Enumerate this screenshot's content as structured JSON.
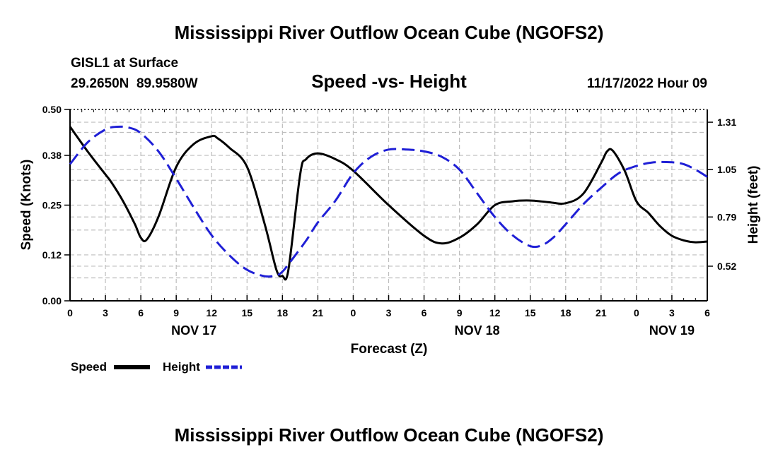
{
  "header": {
    "title": "Mississippi River Outflow Ocean Cube (NGOFS2)",
    "station": "GISL1 at Surface",
    "coords": "29.2650N  89.9580W",
    "chart_title": "Speed -vs- Height",
    "datetime": "11/17/2022 Hour 09",
    "footer_title": "Mississippi River Outflow Ocean Cube (NGOFS2)"
  },
  "legend": {
    "speed_label": "Speed",
    "height_label": "Height"
  },
  "colors": {
    "speed": "#000000",
    "height": "#1f1fd6",
    "grid": "#bdbdbd"
  },
  "chart_data": {
    "type": "line",
    "title": "Speed -vs- Height",
    "xlabel": "Forecast (Z)",
    "ylabel": "Speed (Knots)",
    "y2label": "Height (feet)",
    "xlim": [
      0,
      54
    ],
    "ylim": [
      0,
      0.5
    ],
    "y2lim": [
      0.33,
      1.38
    ],
    "x_ticks": [
      0,
      3,
      6,
      9,
      12,
      15,
      18,
      21,
      24,
      27,
      30,
      33,
      36,
      39,
      42,
      45,
      48,
      51,
      54
    ],
    "x_tick_labels": [
      "0",
      "3",
      "6",
      "9",
      "12",
      "15",
      "18",
      "21",
      "0",
      "3",
      "6",
      "9",
      "12",
      "15",
      "18",
      "21",
      "0",
      "3",
      "6"
    ],
    "y_ticks": [
      0.0,
      0.12,
      0.25,
      0.38,
      0.5
    ],
    "y_tick_labels": [
      "0.00",
      "0.12",
      "0.25",
      "0.38",
      "0.50"
    ],
    "y2_ticks": [
      0.52,
      0.79,
      1.05,
      1.31
    ],
    "y2_tick_labels": [
      "0.52",
      "0.79",
      "1.05",
      "1.31"
    ],
    "date_labels": [
      {
        "x": 10.5,
        "label": "NOV 17"
      },
      {
        "x": 34.5,
        "label": "NOV 18"
      },
      {
        "x": 51,
        "label": "NOV 19"
      }
    ],
    "grid": true,
    "series": [
      {
        "name": "Speed",
        "axis": "left",
        "style": "solid",
        "x": [
          0,
          1.5,
          3,
          3.5,
          4.5,
          5.5,
          6,
          6.5,
          7.5,
          9,
          10.5,
          12,
          12.5,
          13.5,
          15,
          16.5,
          17.5,
          18,
          18.5,
          19.5,
          20,
          21,
          22.5,
          24,
          27,
          30,
          31.5,
          33,
          34.5,
          36,
          37.5,
          39,
          40.5,
          42,
          43.5,
          45,
          45.5,
          46,
          47,
          48,
          49,
          50,
          51,
          52,
          53,
          54
        ],
        "values": [
          0.455,
          0.39,
          0.33,
          0.31,
          0.26,
          0.2,
          0.165,
          0.16,
          0.22,
          0.35,
          0.41,
          0.43,
          0.425,
          0.4,
          0.35,
          0.2,
          0.08,
          0.065,
          0.08,
          0.33,
          0.37,
          0.385,
          0.37,
          0.34,
          0.25,
          0.17,
          0.15,
          0.165,
          0.2,
          0.25,
          0.26,
          0.262,
          0.258,
          0.255,
          0.28,
          0.36,
          0.39,
          0.392,
          0.34,
          0.26,
          0.23,
          0.195,
          0.17,
          0.158,
          0.153,
          0.155
        ]
      },
      {
        "name": "Height",
        "axis": "right",
        "style": "dashed",
        "x": [
          0,
          1.5,
          3,
          4,
          5,
          6,
          7.5,
          9,
          10.5,
          12,
          13.5,
          15,
          16.5,
          17.5,
          18,
          18.5,
          20,
          21,
          22.5,
          24,
          25.5,
          27,
          28.5,
          30,
          31.5,
          33,
          34.5,
          36,
          37.5,
          39,
          40,
          41,
          42,
          43.5,
          45,
          46.5,
          48,
          49.5,
          51,
          52,
          53,
          54
        ],
        "values": [
          1.08,
          1.2,
          1.27,
          1.285,
          1.28,
          1.25,
          1.15,
          1.0,
          0.84,
          0.69,
          0.58,
          0.5,
          0.465,
          0.47,
          0.49,
          0.53,
          0.66,
          0.76,
          0.88,
          1.03,
          1.12,
          1.16,
          1.16,
          1.15,
          1.12,
          1.05,
          0.92,
          0.79,
          0.69,
          0.63,
          0.635,
          0.68,
          0.75,
          0.86,
          0.95,
          1.03,
          1.07,
          1.09,
          1.09,
          1.08,
          1.05,
          1.01
        ]
      }
    ]
  }
}
